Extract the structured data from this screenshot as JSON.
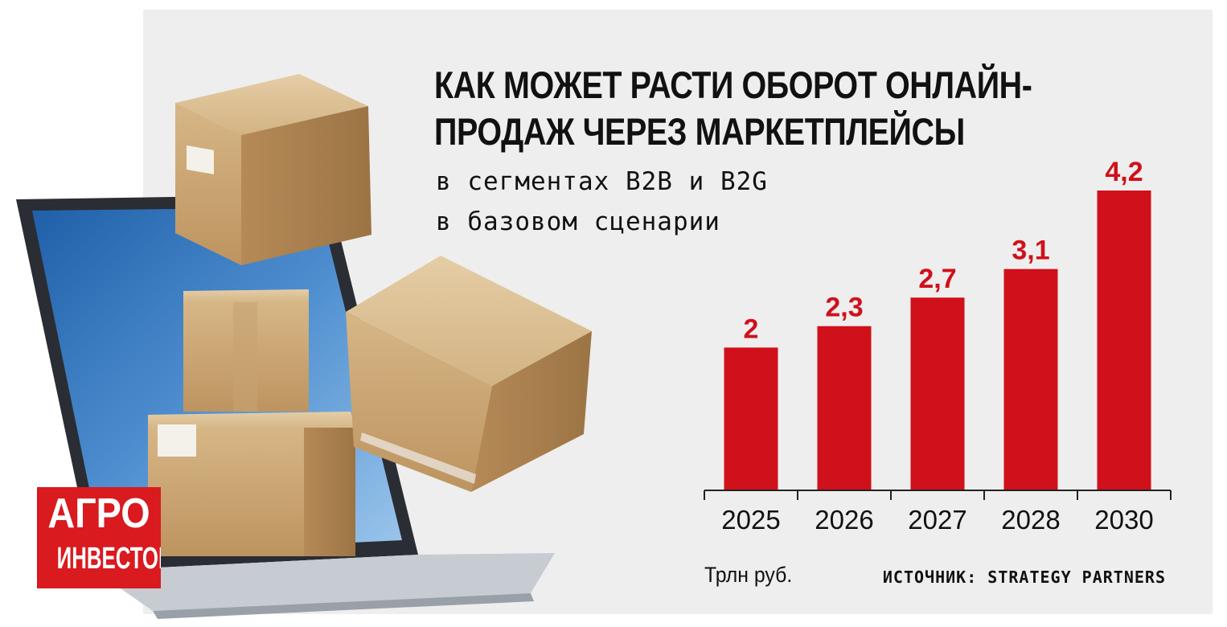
{
  "title": {
    "line1": "КАК МОЖЕТ РАСТИ ОБОРОТ ОНЛАЙН-",
    "line2": "ПРОДАЖ ЧЕРЕЗ МАРКЕТПЛЕЙСЫ"
  },
  "subtitle": {
    "line1": "в сегментах B2B и B2G",
    "line2": "в базовом сценарии"
  },
  "logo": {
    "line1": "АГРО",
    "line2": "ИНВЕСТОР"
  },
  "colors": {
    "bar": "#d0101a",
    "value_text": "#d0101a",
    "panel": "#eeeeee",
    "logo": "#d91a1f"
  },
  "chart_data": {
    "type": "bar",
    "categories": [
      "2025",
      "2026",
      "2027",
      "2028",
      "2030"
    ],
    "values": [
      2,
      2.3,
      2.7,
      3.1,
      4.2
    ],
    "value_labels": [
      "2",
      "2,3",
      "2,7",
      "3,1",
      "4,2"
    ],
    "title": "КАК МОЖЕТ РАСТИ ОБОРОТ ОНЛАЙН-ПРОДАЖ ЧЕРЕЗ МАРКЕТПЛЕЙСЫ",
    "subtitle": "в сегментах B2B и B2G в базовом сценарии",
    "xlabel": "",
    "ylabel": "",
    "unit": "Трлн руб.",
    "source": "ИСТОЧНИК: STRATEGY PARTNERS",
    "ylim": [
      0,
      4.2
    ],
    "grid": false,
    "legend": "none"
  }
}
